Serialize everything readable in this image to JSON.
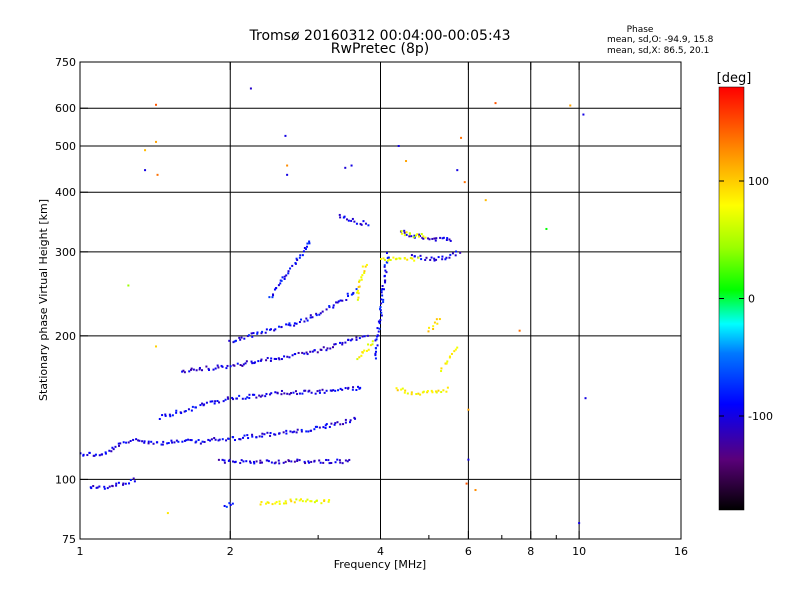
{
  "title": {
    "line1": "Tromsø 20160312 00:04:00-00:05:43",
    "line2": "RwPretec (8p)"
  },
  "phase_info": {
    "heading": "Phase",
    "line_o": "mean, sd,O: -94.9, 15.8",
    "line_x": "mean, sd,X: 86.5, 20.1"
  },
  "colorbar": {
    "unit_label": "[deg]",
    "range": [
      -180,
      180
    ],
    "ticks": [
      {
        "value": 100,
        "label": "100"
      },
      {
        "value": 0,
        "label": "0"
      },
      {
        "value": -100,
        "label": "-100"
      }
    ]
  },
  "chart_data": {
    "type": "scatter",
    "title": "Tromsø 20160312 00:04:00-00:05:43",
    "subtitle": "RwPretec (8p)",
    "xlabel": "Frequency [MHz]",
    "ylabel": "Stationary phase Virtual Height [km]",
    "xscale": "log",
    "yscale": "log",
    "xlim": [
      1,
      16
    ],
    "ylim": [
      75,
      750
    ],
    "grid": true,
    "x_ticks": [
      {
        "value": 1,
        "label": "1",
        "grid": false
      },
      {
        "value": 2,
        "label": "2",
        "grid": true
      },
      {
        "value": 4,
        "label": "4",
        "grid": true
      },
      {
        "value": 6,
        "label": "6",
        "grid": true
      },
      {
        "value": 8,
        "label": "8",
        "grid": true
      },
      {
        "value": 10,
        "label": "10",
        "grid": true
      },
      {
        "value": 16,
        "label": "16",
        "grid": false
      }
    ],
    "x_minor_grid": [
      3,
      5,
      7,
      9
    ],
    "y_ticks": [
      {
        "value": 75,
        "label": "75",
        "grid": false
      },
      {
        "value": 100,
        "label": "100",
        "grid": true
      },
      {
        "value": 200,
        "label": "200",
        "grid": true
      },
      {
        "value": 300,
        "label": "300",
        "grid": true
      },
      {
        "value": 400,
        "label": "400",
        "grid": true
      },
      {
        "value": 500,
        "label": "500",
        "grid": true
      },
      {
        "value": 600,
        "label": "600",
        "grid": true
      },
      {
        "value": 750,
        "label": "750",
        "grid": false
      }
    ],
    "color_scale": "phase [deg], -180 black/purple → blue → cyan → green → yellow → red 180",
    "traces": [
      {
        "phase": -110,
        "points": [
          [
            1.0,
            113
          ],
          [
            1.05,
            113
          ],
          [
            1.1,
            112
          ],
          [
            1.15,
            115
          ],
          [
            1.2,
            118
          ],
          [
            1.25,
            120
          ],
          [
            1.3,
            121
          ],
          [
            1.38,
            120
          ],
          [
            1.45,
            119
          ],
          [
            1.55,
            120
          ],
          [
            1.65,
            120
          ],
          [
            1.75,
            120
          ],
          [
            1.85,
            121
          ],
          [
            1.95,
            121
          ],
          [
            2.05,
            122
          ],
          [
            2.2,
            123
          ],
          [
            2.35,
            124
          ],
          [
            2.5,
            125
          ],
          [
            2.65,
            126
          ],
          [
            2.8,
            126
          ],
          [
            3.0,
            128
          ],
          [
            3.2,
            130
          ],
          [
            3.4,
            132
          ],
          [
            3.6,
            134
          ]
        ]
      },
      {
        "phase": -115,
        "points": [
          [
            1.9,
            109
          ],
          [
            2.0,
            109
          ],
          [
            2.2,
            109
          ],
          [
            2.4,
            109
          ],
          [
            2.6,
            109
          ],
          [
            2.8,
            109
          ],
          [
            3.0,
            109
          ],
          [
            3.2,
            109
          ],
          [
            3.4,
            109
          ],
          [
            3.5,
            110
          ]
        ]
      },
      {
        "phase": -110,
        "points": [
          [
            1.45,
            135
          ],
          [
            1.55,
            138
          ],
          [
            1.65,
            140
          ],
          [
            1.75,
            143
          ],
          [
            1.85,
            145
          ],
          [
            1.95,
            147
          ],
          [
            2.05,
            148
          ],
          [
            2.2,
            149
          ],
          [
            2.35,
            150
          ],
          [
            2.5,
            152
          ],
          [
            2.7,
            152
          ],
          [
            2.9,
            152
          ],
          [
            3.1,
            153
          ],
          [
            3.3,
            154
          ],
          [
            3.5,
            155
          ],
          [
            3.7,
            156
          ]
        ]
      },
      {
        "phase": -115,
        "points": [
          [
            1.6,
            168
          ],
          [
            1.7,
            170
          ],
          [
            1.8,
            171
          ],
          [
            1.9,
            172
          ],
          [
            2.0,
            173
          ],
          [
            2.15,
            175
          ],
          [
            2.3,
            177
          ],
          [
            2.45,
            179
          ],
          [
            2.6,
            181
          ],
          [
            2.8,
            184
          ],
          [
            3.0,
            186
          ],
          [
            3.2,
            190
          ],
          [
            3.4,
            195
          ],
          [
            3.6,
            198
          ],
          [
            3.8,
            200
          ]
        ]
      },
      {
        "phase": -105,
        "points": [
          [
            2.0,
            195
          ],
          [
            2.1,
            198
          ],
          [
            2.2,
            200
          ],
          [
            2.3,
            203
          ],
          [
            2.45,
            206
          ],
          [
            2.6,
            210
          ],
          [
            2.8,
            215
          ],
          [
            3.0,
            222
          ],
          [
            3.2,
            230
          ],
          [
            3.4,
            240
          ],
          [
            3.6,
            250
          ]
        ]
      },
      {
        "phase": -100,
        "points": [
          [
            2.4,
            240
          ],
          [
            2.5,
            255
          ],
          [
            2.6,
            270
          ],
          [
            2.7,
            285
          ],
          [
            2.8,
            300
          ],
          [
            2.9,
            320
          ]
        ]
      },
      {
        "phase": -110,
        "points": [
          [
            3.3,
            358
          ],
          [
            3.4,
            355
          ],
          [
            3.5,
            350
          ],
          [
            3.6,
            345
          ],
          [
            3.7,
            345
          ],
          [
            3.8,
            343
          ]
        ]
      },
      {
        "phase": -100,
        "points": [
          [
            3.9,
            180
          ],
          [
            3.95,
            200
          ],
          [
            4.0,
            220
          ],
          [
            4.05,
            250
          ],
          [
            4.1,
            280
          ],
          [
            4.15,
            300
          ]
        ]
      },
      {
        "phase": -110,
        "points": [
          [
            4.6,
            295
          ],
          [
            4.8,
            292
          ],
          [
            5.0,
            290
          ],
          [
            5.2,
            290
          ],
          [
            5.4,
            292
          ],
          [
            5.6,
            295
          ],
          [
            5.8,
            300
          ]
        ]
      },
      {
        "phase": -115,
        "points": [
          [
            4.4,
            330
          ],
          [
            4.6,
            325
          ],
          [
            4.8,
            323
          ],
          [
            5.0,
            320
          ],
          [
            5.2,
            318
          ],
          [
            5.4,
            318
          ],
          [
            5.6,
            317
          ]
        ]
      },
      {
        "phase": -110,
        "points": [
          [
            1.05,
            97
          ],
          [
            1.1,
            96
          ],
          [
            1.15,
            96
          ],
          [
            1.2,
            98
          ],
          [
            1.25,
            99
          ],
          [
            1.3,
            100
          ]
        ]
      },
      {
        "phase": -95,
        "points": [
          [
            1.95,
            88
          ],
          [
            2.0,
            89
          ],
          [
            2.05,
            89
          ]
        ]
      },
      {
        "phase": 80,
        "points": [
          [
            2.3,
            89
          ],
          [
            2.45,
            89
          ],
          [
            2.6,
            90
          ],
          [
            2.8,
            90
          ],
          [
            3.0,
            90
          ],
          [
            3.2,
            90
          ]
        ]
      },
      {
        "phase": 85,
        "points": [
          [
            3.6,
            240
          ],
          [
            3.65,
            260
          ],
          [
            3.7,
            275
          ],
          [
            3.75,
            285
          ]
        ]
      },
      {
        "phase": 80,
        "points": [
          [
            4.0,
            290
          ],
          [
            4.2,
            289
          ],
          [
            4.4,
            289
          ],
          [
            4.6,
            289
          ],
          [
            4.8,
            289
          ]
        ]
      },
      {
        "phase": 85,
        "points": [
          [
            4.3,
            155
          ],
          [
            4.5,
            153
          ],
          [
            4.7,
            152
          ],
          [
            4.9,
            152
          ],
          [
            5.1,
            152
          ],
          [
            5.3,
            153
          ],
          [
            5.5,
            155
          ]
        ]
      },
      {
        "phase": 75,
        "points": [
          [
            3.6,
            180
          ],
          [
            3.7,
            185
          ],
          [
            3.8,
            190
          ],
          [
            3.9,
            195
          ]
        ]
      },
      {
        "phase": 70,
        "points": [
          [
            4.4,
            330
          ],
          [
            4.6,
            325
          ],
          [
            4.8,
            325
          ],
          [
            5.0,
            323
          ]
        ]
      },
      {
        "phase": 90,
        "points": [
          [
            5.0,
            205
          ],
          [
            5.1,
            210
          ],
          [
            5.2,
            215
          ],
          [
            5.3,
            215
          ]
        ]
      },
      {
        "phase": 85,
        "points": [
          [
            5.3,
            170
          ],
          [
            5.4,
            175
          ],
          [
            5.5,
            180
          ],
          [
            5.6,
            185
          ],
          [
            5.7,
            190
          ]
        ]
      }
    ],
    "isolated_points": [
      {
        "x": 1.42,
        "y": 610,
        "phase": 150
      },
      {
        "x": 1.42,
        "y": 510,
        "phase": 120
      },
      {
        "x": 1.35,
        "y": 490,
        "phase": 110
      },
      {
        "x": 1.35,
        "y": 445,
        "phase": -110
      },
      {
        "x": 1.43,
        "y": 435,
        "phase": 140
      },
      {
        "x": 2.2,
        "y": 660,
        "phase": -120
      },
      {
        "x": 2.58,
        "y": 525,
        "phase": -110
      },
      {
        "x": 2.6,
        "y": 455,
        "phase": 130
      },
      {
        "x": 2.6,
        "y": 435,
        "phase": -110
      },
      {
        "x": 3.5,
        "y": 455,
        "phase": -110
      },
      {
        "x": 3.4,
        "y": 450,
        "phase": -115
      },
      {
        "x": 4.35,
        "y": 500,
        "phase": -110
      },
      {
        "x": 4.5,
        "y": 465,
        "phase": 120
      },
      {
        "x": 5.8,
        "y": 520,
        "phase": 140
      },
      {
        "x": 5.7,
        "y": 445,
        "phase": -110
      },
      {
        "x": 5.9,
        "y": 420,
        "phase": 140
      },
      {
        "x": 6.5,
        "y": 385,
        "phase": 110
      },
      {
        "x": 6.8,
        "y": 615,
        "phase": 150
      },
      {
        "x": 9.6,
        "y": 608,
        "phase": 120
      },
      {
        "x": 10.2,
        "y": 582,
        "phase": -110
      },
      {
        "x": 8.6,
        "y": 335,
        "phase": 0
      },
      {
        "x": 7.6,
        "y": 205,
        "phase": 140
      },
      {
        "x": 10.3,
        "y": 148,
        "phase": -110
      },
      {
        "x": 10.0,
        "y": 81,
        "phase": -110
      },
      {
        "x": 1.25,
        "y": 255,
        "phase": 40
      },
      {
        "x": 1.42,
        "y": 190,
        "phase": 100
      },
      {
        "x": 1.5,
        "y": 85,
        "phase": 90
      },
      {
        "x": 5.95,
        "y": 98,
        "phase": 150
      },
      {
        "x": 6.0,
        "y": 110,
        "phase": -110
      },
      {
        "x": 6.0,
        "y": 140,
        "phase": 120
      },
      {
        "x": 6.2,
        "y": 95,
        "phase": 130
      }
    ]
  }
}
